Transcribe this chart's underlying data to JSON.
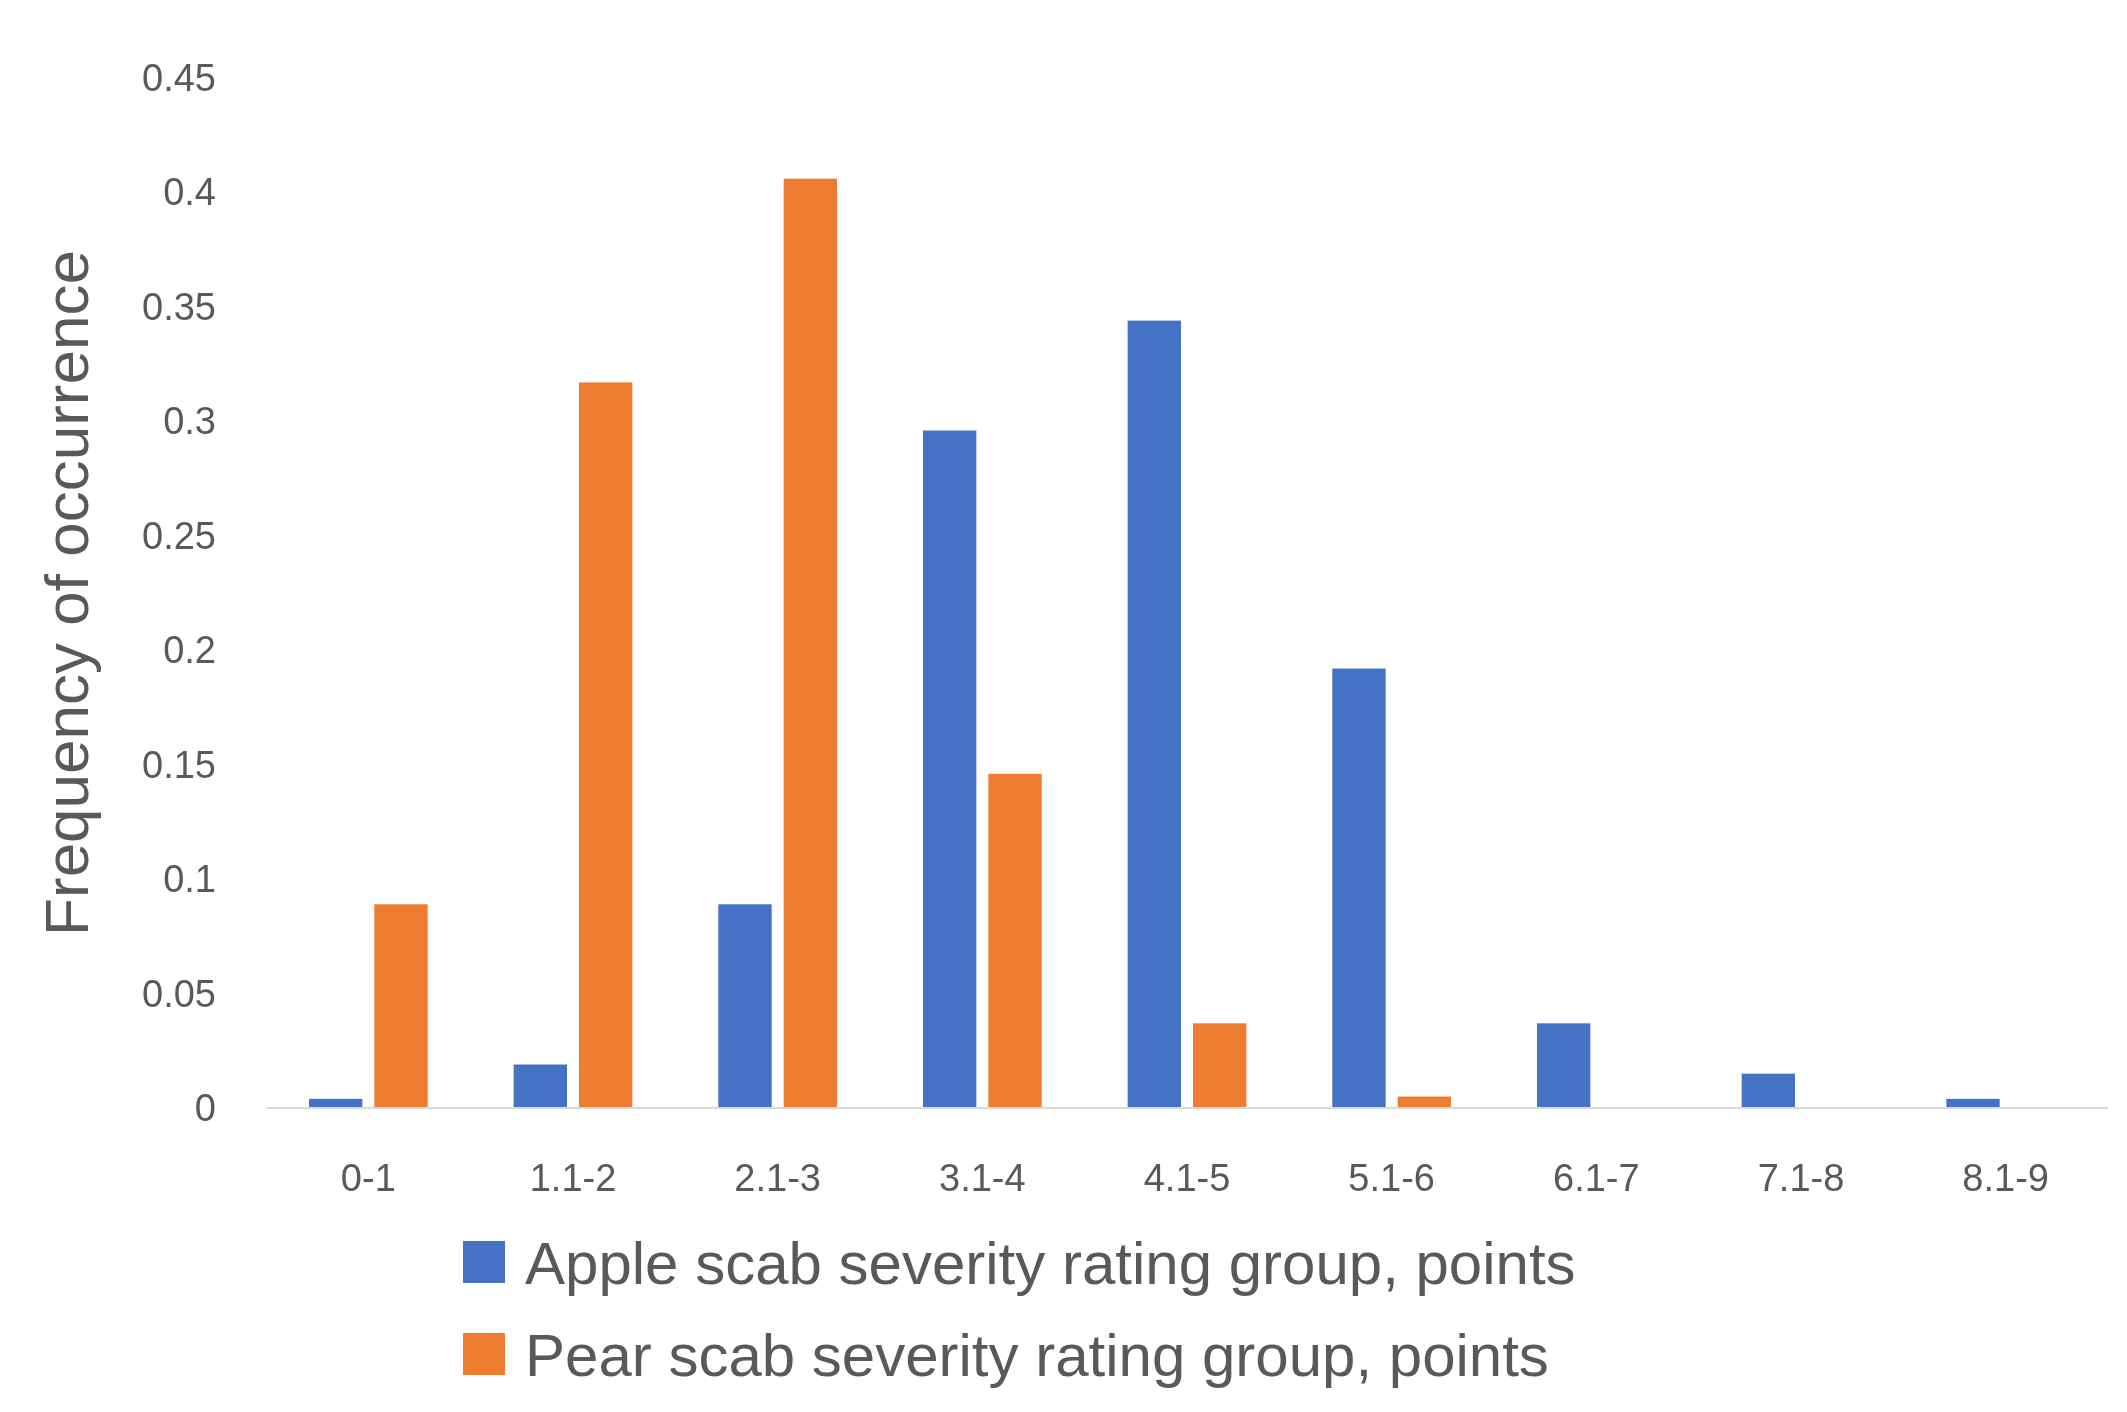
{
  "chart_data": {
    "type": "bar",
    "ylabel": "Frequency of occurrence",
    "categories": [
      "0-1",
      "1.1-2",
      "2.1-3",
      "3.1-4",
      "4.1-5",
      "5.1-6",
      "6.1-7",
      "7.1-8",
      "8.1-9"
    ],
    "series": [
      {
        "name": "Apple scab severity rating group, points",
        "color": "#4472c4",
        "values": [
          0.004,
          0.019,
          0.089,
          0.296,
          0.344,
          0.192,
          0.037,
          0.015,
          0.004
        ]
      },
      {
        "name": "Pear scab severity rating group, points",
        "color": "#ed7d31",
        "values": [
          0.089,
          0.317,
          0.406,
          0.146,
          0.037,
          0.005,
          0,
          0,
          0
        ]
      }
    ],
    "ylim": [
      0,
      0.45
    ],
    "yticks": [
      0,
      0.05,
      0.1,
      0.15,
      0.2,
      0.25,
      0.3,
      0.35,
      0.4,
      0.45
    ],
    "grid": false,
    "legend": "bottom"
  }
}
